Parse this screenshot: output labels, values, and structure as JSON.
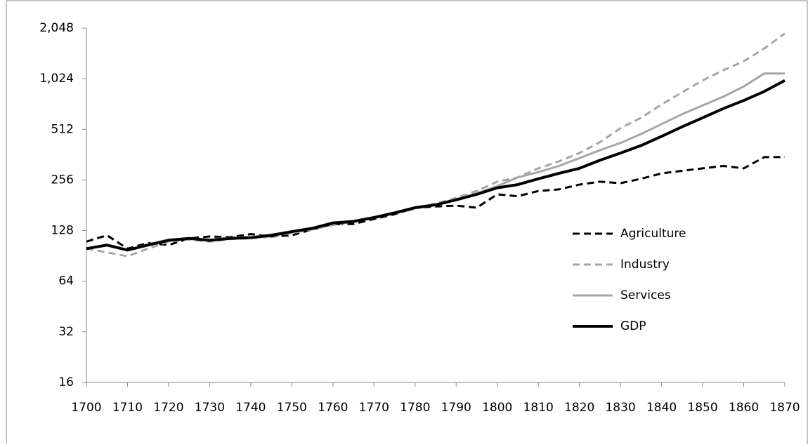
{
  "chart_data": {
    "type": "line",
    "x": [
      1700,
      1705,
      1710,
      1715,
      1720,
      1725,
      1730,
      1735,
      1740,
      1745,
      1750,
      1755,
      1760,
      1765,
      1770,
      1775,
      1780,
      1785,
      1790,
      1795,
      1800,
      1805,
      1810,
      1815,
      1820,
      1825,
      1830,
      1835,
      1840,
      1845,
      1850,
      1855,
      1860,
      1865,
      1870
    ],
    "series": [
      {
        "name": "Agriculture",
        "color": "#000000",
        "linestyle": "dashed",
        "linewidth": 3,
        "values": [
          110,
          120,
          100,
          108,
          105,
          115,
          118,
          117,
          122,
          118,
          120,
          130,
          140,
          140,
          150,
          160,
          175,
          178,
          180,
          175,
          210,
          205,
          220,
          225,
          240,
          250,
          245,
          260,
          280,
          290,
          300,
          310,
          300,
          350,
          350
        ]
      },
      {
        "name": "Industry",
        "color": "#a6a6a6",
        "linestyle": "dashed",
        "linewidth": 3,
        "values": [
          100,
          95,
          90,
          100,
          110,
          113,
          110,
          114,
          115,
          118,
          124,
          130,
          138,
          145,
          152,
          162,
          172,
          185,
          200,
          220,
          250,
          265,
          300,
          330,
          370,
          430,
          520,
          600,
          720,
          850,
          1000,
          1150,
          1300,
          1550,
          1900
        ]
      },
      {
        "name": "Services",
        "color": "#a6a6a6",
        "linestyle": "solid",
        "linewidth": 3,
        "values": [
          100,
          104,
          98,
          106,
          113,
          115,
          113,
          116,
          117,
          121,
          127,
          133,
          143,
          146,
          154,
          164,
          176,
          183,
          197,
          213,
          235,
          265,
          285,
          310,
          345,
          385,
          425,
          480,
          550,
          630,
          710,
          800,
          920,
          1100,
          1100
        ]
      },
      {
        "name": "GDP",
        "color": "#000000",
        "linestyle": "solid",
        "linewidth": 4,
        "values": [
          100,
          105,
          98,
          105,
          112,
          115,
          112,
          115,
          116,
          120,
          126,
          132,
          142,
          145,
          153,
          163,
          175,
          182,
          195,
          210,
          230,
          240,
          260,
          280,
          300,
          335,
          370,
          410,
          465,
          530,
          600,
          680,
          760,
          860,
          1000
        ]
      }
    ],
    "xlim": [
      1700,
      1870
    ],
    "xticks": [
      1700,
      1710,
      1720,
      1730,
      1740,
      1750,
      1760,
      1770,
      1780,
      1790,
      1800,
      1810,
      1820,
      1830,
      1840,
      1850,
      1860,
      1870
    ],
    "yscale": "log",
    "log_base": 2,
    "ylim": [
      16,
      2048
    ],
    "yticks": [
      16,
      32,
      64,
      128,
      256,
      512,
      {
        "value": 1024,
        "label": "1,024"
      },
      {
        "value": 2048,
        "label": "2,048"
      }
    ],
    "legend": "right"
  }
}
